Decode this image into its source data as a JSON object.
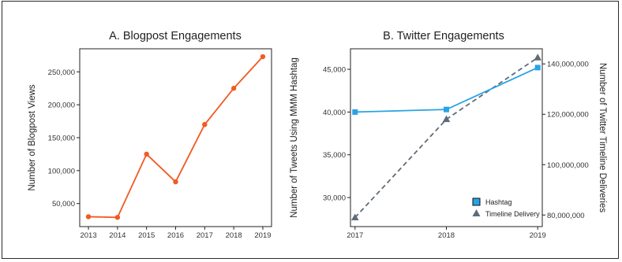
{
  "chart_data": [
    {
      "type": "line",
      "title": "A. Blogpost Engagements",
      "xlabel": "",
      "ylabel": "Number of Blogpost Views",
      "categories": [
        "2013",
        "2014",
        "2015",
        "2016",
        "2017",
        "2018",
        "2019"
      ],
      "x": [
        2013,
        2014,
        2015,
        2016,
        2017,
        2018,
        2019
      ],
      "values": [
        30000,
        29000,
        125000,
        83000,
        170000,
        225000,
        273000
      ],
      "ylim": [
        15000,
        285000
      ],
      "yticks": [
        50000,
        100000,
        150000,
        200000,
        250000
      ],
      "ytick_labels": [
        "50,000",
        "100,000",
        "150,000",
        "200,000",
        "250,000"
      ],
      "color": "#f15a22",
      "grid": false
    },
    {
      "type": "line",
      "title": "B. Twitter Engagements",
      "xlabel": "",
      "ylabel": "Number of Tweets Using MMM Hashtag",
      "y2label": "Number of Twitter Timeline Deliveries",
      "categories": [
        "2017",
        "2018",
        "2019"
      ],
      "x": [
        2017,
        2018,
        2019
      ],
      "xlim": [
        2016.95,
        2019.05
      ],
      "ylim": [
        26600,
        47400
      ],
      "yticks": [
        30000,
        35000,
        40000,
        45000
      ],
      "ytick_labels": [
        "30,000",
        "35,000",
        "40,000",
        "45,000"
      ],
      "y2lim": [
        75400000,
        146000000
      ],
      "y2ticks": [
        80000000,
        100000000,
        120000000,
        140000000
      ],
      "y2tick_labels": [
        "80,000,000",
        "100,000,000",
        "120,000,000",
        "140,000,000"
      ],
      "series": [
        {
          "name": "Hashtag",
          "axis": "left",
          "values": [
            40000,
            40300,
            45200
          ],
          "color": "#29a3e3",
          "marker": "square",
          "style": "solid"
        },
        {
          "name": "Timeline Delivery",
          "axis": "right",
          "values": [
            79000000,
            118000000,
            142500000
          ],
          "color": "#5f6b78",
          "marker": "triangle",
          "style": "dashed"
        }
      ],
      "legend": "bottom-right",
      "grid": false
    }
  ]
}
